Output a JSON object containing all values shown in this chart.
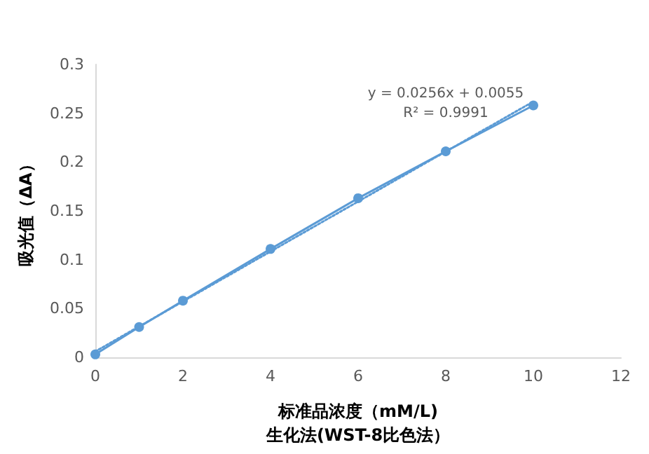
{
  "chart_data": {
    "type": "line",
    "xlabel": "标准品浓度（mM/L)\n生化法(WST-8比色法）",
    "ylabel": "吸光值（ΔA）",
    "x": [
      0,
      1,
      2,
      4,
      6,
      8,
      10
    ],
    "series": [
      {
        "color": "#5b9bd5",
        "values": [
          0.003,
          0.031,
          0.058,
          0.111,
          0.163,
          0.211,
          0.258
        ],
        "marker": "circle",
        "line_style": "solid"
      },
      {
        "color": "#5b9bd5",
        "x": [
          0,
          10
        ],
        "values": [
          0.006,
          0.262
        ],
        "marker": "none",
        "line_style": "dotted"
      }
    ],
    "annotations": [
      "y = 0.0256x + 0.0055",
      "R² = 0.9991"
    ],
    "xlim": [
      0,
      12
    ],
    "xticks": [
      0,
      2,
      4,
      6,
      8,
      10,
      12
    ],
    "ylim": [
      0,
      0.3
    ],
    "yticks": [
      0,
      0.05,
      0.1,
      0.15,
      0.2,
      0.25,
      0.3
    ],
    "grid": false
  }
}
